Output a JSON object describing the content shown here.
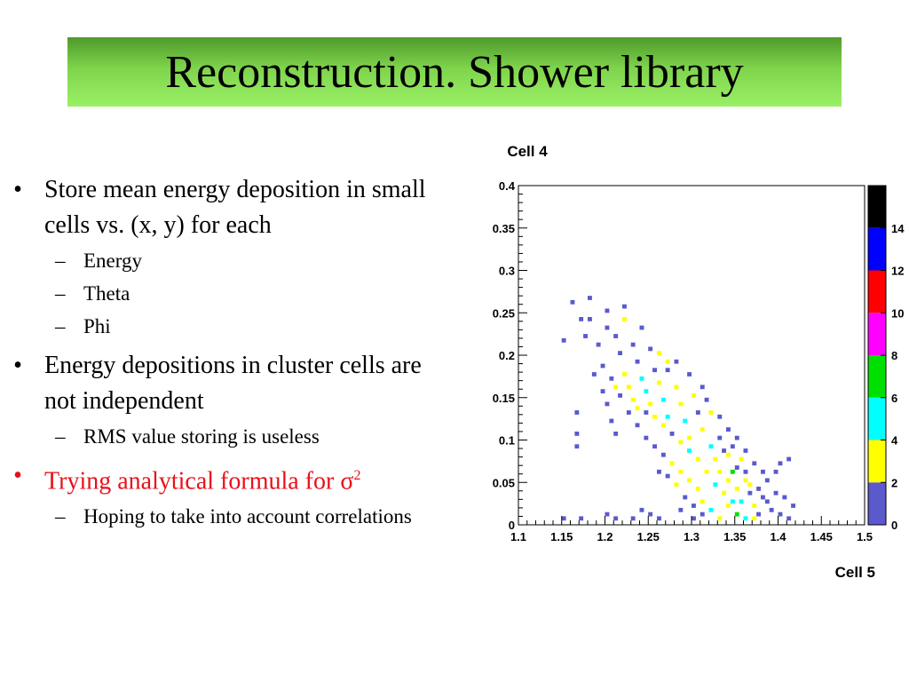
{
  "slide": {
    "title": "Reconstruction. Shower library",
    "bullets": [
      {
        "text": "Store mean energy deposition in small cells vs. (x, y) for each",
        "sub": [
          "Energy",
          "Theta",
          "Phi"
        ]
      },
      {
        "text": "Energy depositions in cluster cells are not independent",
        "sub": [
          "RMS value storing is useless"
        ]
      },
      {
        "text": "Trying analytical formula for σ",
        "superscript": "2",
        "color": "#e8101a",
        "sub": [
          "Hoping to take into account correlations"
        ]
      }
    ]
  },
  "chart_data": {
    "type": "heatmap",
    "title": "",
    "ylabel_top": "Cell 4",
    "xlabel": "Cell 5",
    "xlim": [
      1.1,
      1.5
    ],
    "ylim": [
      0,
      0.4
    ],
    "x_ticks": [
      "1.1",
      "1.15",
      "1.2",
      "1.25",
      "1.3",
      "1.35",
      "1.4",
      "1.45",
      "1.5"
    ],
    "y_ticks": [
      "0",
      "0.05",
      "0.1",
      "0.15",
      "0.2",
      "0.25",
      "0.3",
      "0.35",
      "0.4"
    ],
    "bin_width": {
      "x": 0.005,
      "y": 0.005
    },
    "palette": {
      "levels": [
        0,
        2,
        4,
        6,
        8,
        10,
        12,
        14
      ],
      "colors": [
        "#5a5acd",
        "#ffff00",
        "#00ffff",
        "#00e000",
        "#ff00ff",
        "#ff0000",
        "#0000ff",
        "#000000"
      ],
      "tick_labels": [
        "0",
        "2",
        "4",
        "6",
        "8",
        "10",
        "12",
        "14"
      ],
      "max": 16
    },
    "cells": [
      [
        1.16,
        0.26,
        1
      ],
      [
        1.18,
        0.265,
        1
      ],
      [
        1.18,
        0.24,
        1
      ],
      [
        1.17,
        0.24,
        1
      ],
      [
        1.2,
        0.25,
        1
      ],
      [
        1.22,
        0.255,
        1
      ],
      [
        1.175,
        0.22,
        1
      ],
      [
        1.15,
        0.215,
        1
      ],
      [
        1.165,
        0.13,
        1
      ],
      [
        1.165,
        0.105,
        1
      ],
      [
        1.165,
        0.09,
        1
      ],
      [
        1.185,
        0.175,
        1
      ],
      [
        1.19,
        0.21,
        1
      ],
      [
        1.2,
        0.23,
        1
      ],
      [
        1.21,
        0.22,
        1
      ],
      [
        1.23,
        0.21,
        1
      ],
      [
        1.22,
        0.24,
        2
      ],
      [
        1.24,
        0.23,
        1
      ],
      [
        1.25,
        0.205,
        1
      ],
      [
        1.26,
        0.2,
        2
      ],
      [
        1.27,
        0.19,
        2
      ],
      [
        1.28,
        0.19,
        1
      ],
      [
        1.195,
        0.185,
        1
      ],
      [
        1.205,
        0.17,
        1
      ],
      [
        1.195,
        0.155,
        1
      ],
      [
        1.2,
        0.14,
        1
      ],
      [
        1.205,
        0.12,
        1
      ],
      [
        1.21,
        0.105,
        1
      ],
      [
        1.22,
        0.175,
        3
      ],
      [
        1.225,
        0.16,
        3
      ],
      [
        1.23,
        0.145,
        3
      ],
      [
        1.24,
        0.17,
        4
      ],
      [
        1.245,
        0.155,
        5
      ],
      [
        1.25,
        0.14,
        3
      ],
      [
        1.26,
        0.165,
        3
      ],
      [
        1.265,
        0.145,
        5
      ],
      [
        1.27,
        0.125,
        4
      ],
      [
        1.28,
        0.16,
        3
      ],
      [
        1.285,
        0.14,
        3
      ],
      [
        1.29,
        0.12,
        5
      ],
      [
        1.295,
        0.1,
        3
      ],
      [
        1.3,
        0.15,
        3
      ],
      [
        1.305,
        0.13,
        1
      ],
      [
        1.31,
        0.11,
        3
      ],
      [
        1.32,
        0.09,
        5
      ],
      [
        1.325,
        0.075,
        3
      ],
      [
        1.33,
        0.1,
        1
      ],
      [
        1.34,
        0.08,
        3
      ],
      [
        1.345,
        0.06,
        7
      ],
      [
        1.35,
        0.04,
        3
      ],
      [
        1.355,
        0.025,
        5
      ],
      [
        1.36,
        0.05,
        3
      ],
      [
        1.365,
        0.035,
        1
      ],
      [
        1.37,
        0.02,
        3
      ],
      [
        1.375,
        0.01,
        1
      ],
      [
        1.38,
        0.03,
        1
      ],
      [
        1.39,
        0.015,
        1
      ],
      [
        1.395,
        0.035,
        1
      ],
      [
        1.4,
        0.01,
        1
      ],
      [
        1.41,
        0.005,
        1
      ],
      [
        1.385,
        0.05,
        1
      ],
      [
        1.33,
        0.125,
        1
      ],
      [
        1.34,
        0.11,
        1
      ],
      [
        1.36,
        0.085,
        1
      ],
      [
        1.37,
        0.07,
        1
      ],
      [
        1.38,
        0.06,
        1
      ],
      [
        1.35,
        0.1,
        1
      ],
      [
        1.315,
        0.145,
        1
      ],
      [
        1.32,
        0.13,
        3
      ],
      [
        1.31,
        0.16,
        1
      ],
      [
        1.295,
        0.175,
        1
      ],
      [
        1.27,
        0.18,
        1
      ],
      [
        1.255,
        0.18,
        1
      ],
      [
        1.235,
        0.19,
        1
      ],
      [
        1.215,
        0.2,
        1
      ],
      [
        1.225,
        0.13,
        1
      ],
      [
        1.235,
        0.115,
        1
      ],
      [
        1.245,
        0.1,
        1
      ],
      [
        1.255,
        0.09,
        1
      ],
      [
        1.265,
        0.08,
        1
      ],
      [
        1.275,
        0.07,
        3
      ],
      [
        1.285,
        0.06,
        3
      ],
      [
        1.295,
        0.05,
        3
      ],
      [
        1.305,
        0.04,
        3
      ],
      [
        1.31,
        0.025,
        3
      ],
      [
        1.32,
        0.015,
        5
      ],
      [
        1.33,
        0.005,
        3
      ],
      [
        1.34,
        0.02,
        3
      ],
      [
        1.35,
        0.01,
        7
      ],
      [
        1.36,
        0.005,
        5
      ],
      [
        1.325,
        0.045,
        5
      ],
      [
        1.335,
        0.035,
        3
      ],
      [
        1.345,
        0.025,
        5
      ],
      [
        1.315,
        0.06,
        3
      ],
      [
        1.305,
        0.075,
        3
      ],
      [
        1.295,
        0.085,
        5
      ],
      [
        1.285,
        0.095,
        3
      ],
      [
        1.275,
        0.105,
        1
      ],
      [
        1.265,
        0.115,
        3
      ],
      [
        1.255,
        0.125,
        3
      ],
      [
        1.245,
        0.13,
        1
      ],
      [
        1.235,
        0.135,
        3
      ],
      [
        1.215,
        0.15,
        1
      ],
      [
        1.21,
        0.16,
        3
      ],
      [
        1.28,
        0.045,
        3
      ],
      [
        1.27,
        0.055,
        1
      ],
      [
        1.26,
        0.06,
        1
      ],
      [
        1.29,
        0.03,
        1
      ],
      [
        1.3,
        0.02,
        1
      ],
      [
        1.31,
        0.01,
        1
      ],
      [
        1.3,
        0.005,
        1
      ],
      [
        1.285,
        0.015,
        1
      ],
      [
        1.33,
        0.06,
        3
      ],
      [
        1.34,
        0.05,
        3
      ],
      [
        1.35,
        0.065,
        1
      ],
      [
        1.36,
        0.06,
        1
      ],
      [
        1.365,
        0.045,
        3
      ],
      [
        1.375,
        0.04,
        1
      ],
      [
        1.385,
        0.025,
        1
      ],
      [
        1.37,
        0.005,
        3
      ],
      [
        1.2,
        0.01,
        1
      ],
      [
        1.21,
        0.005,
        1
      ],
      [
        1.15,
        0.005,
        1
      ],
      [
        1.17,
        0.005,
        1
      ],
      [
        1.25,
        0.01,
        1
      ],
      [
        1.26,
        0.005,
        1
      ],
      [
        1.23,
        0.005,
        1
      ],
      [
        1.24,
        0.015,
        1
      ],
      [
        1.395,
        0.06,
        1
      ],
      [
        1.4,
        0.07,
        1
      ],
      [
        1.41,
        0.075,
        1
      ],
      [
        1.405,
        0.03,
        1
      ],
      [
        1.415,
        0.02,
        1
      ],
      [
        1.345,
        0.09,
        1
      ],
      [
        1.355,
        0.075,
        3
      ],
      [
        1.335,
        0.085,
        1
      ]
    ]
  }
}
